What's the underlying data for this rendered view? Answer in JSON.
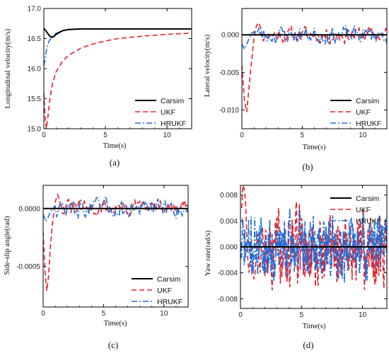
{
  "legend_entries": [
    "Carsim",
    "UKF",
    "HRUKF"
  ],
  "colors": {
    "Carsim": "#000000",
    "UKF": "#e8202a",
    "HRUKF": "#1f6fd8"
  },
  "chart_data": [
    {
      "type": "line",
      "panel_label": "(a)",
      "xlabel": "Time(s)",
      "ylabel": "Longitudinal velocity(m/s)",
      "xlim": [
        0,
        12
      ],
      "ylim": [
        15.0,
        17.0
      ],
      "xticks": [
        0,
        5,
        10
      ],
      "xtick_labels": [
        "0",
        "5",
        "10"
      ],
      "yticks": [
        15.0,
        15.5,
        16.0,
        16.5,
        17.0
      ],
      "ytick_labels": [
        "15.0",
        "15.5",
        "16.0",
        "16.5",
        "17.0"
      ],
      "grid": false,
      "legend_position": "bottom-right",
      "series": [
        {
          "name": "Carsim",
          "style": "solid",
          "x": [
            0,
            0.2,
            0.4,
            0.6,
            0.8,
            1.0,
            1.5,
            2.0,
            3.0,
            4.0,
            6.0,
            8.0,
            10.0,
            12.0
          ],
          "y": [
            16.67,
            16.62,
            16.56,
            16.52,
            16.53,
            16.57,
            16.63,
            16.65,
            16.66,
            16.66,
            16.66,
            16.66,
            16.66,
            16.66
          ]
        },
        {
          "name": "UKF",
          "style": "dashed",
          "x": [
            0,
            0.1,
            0.2,
            0.3,
            0.5,
            0.7,
            1.0,
            1.5,
            2.0,
            3.0,
            4.0,
            5.0,
            6.0,
            8.0,
            10.0,
            12.0
          ],
          "y": [
            15.6,
            15.2,
            15.0,
            15.15,
            15.5,
            15.75,
            15.95,
            16.12,
            16.22,
            16.34,
            16.41,
            16.46,
            16.5,
            16.54,
            16.57,
            16.59
          ]
        },
        {
          "name": "HRUKF",
          "style": "dashdot",
          "x": [
            0,
            0.1,
            0.2,
            0.4,
            0.6,
            0.8,
            1.0,
            1.5,
            2.0,
            3.0,
            5.0,
            8.0,
            12.0
          ],
          "y": [
            16.05,
            16.15,
            16.3,
            16.45,
            16.52,
            16.56,
            16.59,
            16.63,
            16.65,
            16.66,
            16.66,
            16.66,
            16.66
          ]
        }
      ]
    },
    {
      "type": "line",
      "panel_label": "(b)",
      "xlabel": "Time(s)",
      "ylabel": "Lateral velocity(m/s)",
      "xlim": [
        0,
        12
      ],
      "ylim": [
        -0.0125,
        0.0035
      ],
      "xticks": [
        0,
        5,
        10
      ],
      "xtick_labels": [
        "0",
        "5",
        "10"
      ],
      "yticks": [
        0.0,
        -0.005,
        -0.01
      ],
      "ytick_labels": [
        "0.000",
        "-0.005",
        "-0.010"
      ],
      "grid": false,
      "legend_position": "bottom-right",
      "noise": {
        "start": 0.9,
        "dt": 0.1,
        "amp": 0.0009,
        "amp_b": 0.001,
        "seed_a": 11,
        "seed_b": 23
      },
      "series": [
        {
          "name": "Carsim",
          "style": "solid",
          "x": [
            0,
            12
          ],
          "y": [
            0.0,
            0.0
          ]
        },
        {
          "name": "UKF",
          "style": "dashed",
          "x": [
            0,
            0.2,
            0.4,
            0.6,
            0.8,
            1.0,
            1.2,
            1.4,
            1.6
          ],
          "y": [
            -0.004,
            -0.0085,
            -0.0103,
            -0.0068,
            -0.0035,
            -0.0005,
            0.0012,
            0.0016,
            0.0007
          ]
        },
        {
          "name": "HRUKF",
          "style": "dashdot",
          "x": [
            0,
            0.2,
            0.4,
            0.6,
            0.8,
            1.0
          ],
          "y": [
            -0.0012,
            -0.0019,
            -0.0012,
            -0.0005,
            0.0002,
            0.0004
          ]
        }
      ]
    },
    {
      "type": "line",
      "panel_label": "(c)",
      "xlabel": "Time(s)",
      "ylabel": "Side-slip angle(rad)",
      "xlim": [
        0,
        12
      ],
      "ylim": [
        -0.00085,
        0.0002
      ],
      "xticks": [
        0,
        5,
        10
      ],
      "xtick_labels": [
        "0",
        "5",
        "10"
      ],
      "yticks": [
        0.0,
        -0.0005
      ],
      "ytick_labels": [
        "0.0000",
        "-0.0005"
      ],
      "grid": false,
      "legend_position": "bottom-right",
      "noise": {
        "start": 0.9,
        "dt": 0.1,
        "amp": 6e-05,
        "amp_b": 7e-05,
        "seed_a": 31,
        "seed_b": 47
      },
      "series": [
        {
          "name": "Carsim",
          "style": "solid",
          "x": [
            0,
            12
          ],
          "y": [
            0.0,
            0.0
          ]
        },
        {
          "name": "UKF",
          "style": "dashed",
          "x": [
            0,
            0.15,
            0.3,
            0.45,
            0.6,
            0.8,
            1.0,
            1.2,
            1.4
          ],
          "y": [
            -0.0002,
            -0.00055,
            -0.00071,
            -0.00058,
            -0.00032,
            -0.0001,
            6e-05,
            0.00012,
            6e-05
          ]
        },
        {
          "name": "HRUKF",
          "style": "dashdot",
          "x": [
            0,
            0.2,
            0.4,
            0.6,
            0.8,
            1.0
          ],
          "y": [
            -5e-05,
            -0.00011,
            -8e-05,
            -3e-05,
            0.0,
            2e-05
          ]
        }
      ]
    },
    {
      "type": "line",
      "panel_label": "(d)",
      "xlabel": "Time(s)",
      "ylabel": "Yaw rate(rad/s)",
      "xlim": [
        0,
        12
      ],
      "ylim": [
        -0.0095,
        0.0095
      ],
      "xticks": [
        0,
        5,
        10
      ],
      "xtick_labels": [
        "0",
        "5",
        "10"
      ],
      "yticks": [
        0.008,
        0.004,
        0.0,
        -0.004,
        -0.008
      ],
      "ytick_labels": [
        "0.008",
        "0.004",
        "0.000",
        "-0.004",
        "-0.008"
      ],
      "grid": false,
      "legend_position": "top-right",
      "noise": {
        "start": 0.0,
        "dt": 0.03,
        "amp": 0.0045,
        "amp_b": 0.004,
        "seed_a": 59,
        "seed_b": 71
      },
      "series": [
        {
          "name": "Carsim",
          "style": "solid",
          "x": [
            0,
            12
          ],
          "y": [
            0.0,
            0.0
          ]
        },
        {
          "name": "UKF",
          "style": "dashed",
          "x": [
            0.1,
            0.2,
            0.3,
            0.4,
            0.5,
            0.6,
            0.7,
            0.8,
            0.9,
            1.0,
            1.1,
            1.2,
            1.4,
            1.6,
            1.8,
            2.0
          ],
          "y": [
            0.006,
            0.0095,
            0.009,
            0.0075,
            0.003,
            -0.002,
            -0.004,
            -0.002,
            0.001,
            -0.003,
            -0.005,
            -0.004,
            0.002,
            -0.004,
            0.003,
            -0.0045
          ]
        }
      ]
    }
  ]
}
